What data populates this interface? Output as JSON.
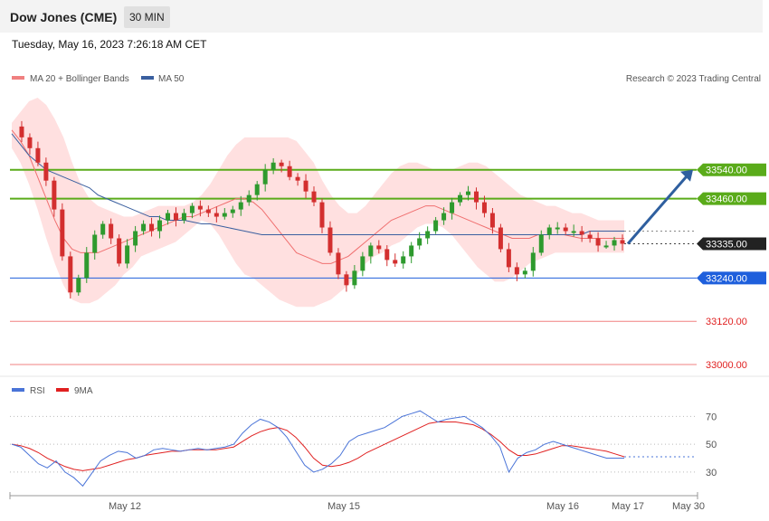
{
  "header": {
    "symbol": "Dow Jones (CME)",
    "timeframe": "30 MIN",
    "timestamp": "Tuesday, May 16, 2023 7:26:18 AM CET"
  },
  "legend": {
    "ma20": {
      "label": "MA 20 + Bollinger Bands",
      "color": "#f08080"
    },
    "ma50": {
      "label": "MA 50",
      "color": "#3a5f9f"
    },
    "rsi": {
      "label": "RSI",
      "color": "#4a74d8"
    },
    "ma9": {
      "label": "9MA",
      "color": "#e02020"
    },
    "credit": "Research © 2023 Trading Central"
  },
  "colors": {
    "up_candle": "#2e9a2e",
    "down_candle": "#d32f2f",
    "bollinger_fill": "#ffd6d6",
    "resistance": "#5aab1a",
    "support": "#1e5fdc",
    "support_far": "#f08080",
    "current": "#222222",
    "arrow": "#2f5f9f"
  },
  "chart_data": [
    {
      "type": "candlestick",
      "title": "Dow Jones (CME) 30 MIN",
      "ylim": [
        32970,
        33760
      ],
      "x_ticks": [
        "May 12",
        "May 15",
        "May 16",
        "May 17",
        "May 30"
      ],
      "levels": [
        {
          "value": 33540.0,
          "label": "33540.00",
          "kind": "resistance"
        },
        {
          "value": 33460.0,
          "label": "33460.00",
          "kind": "resistance"
        },
        {
          "value": 33335.0,
          "label": "33335.00",
          "kind": "current"
        },
        {
          "value": 33240.0,
          "label": "33240.00",
          "kind": "support"
        },
        {
          "value": 33120.0,
          "label": "33120.00",
          "kind": "support_far"
        },
        {
          "value": 33000.0,
          "label": "33000.00",
          "kind": "support_far"
        }
      ],
      "close_path": [
        33660,
        33630,
        33600,
        33560,
        33510,
        33430,
        33300,
        33200,
        33240,
        33310,
        33360,
        33390,
        33350,
        33280,
        33330,
        33370,
        33390,
        33370,
        33400,
        33420,
        33400,
        33420,
        33440,
        33430,
        33420,
        33410,
        33420,
        33430,
        33450,
        33470,
        33500,
        33540,
        33560,
        33550,
        33520,
        33510,
        33480,
        33450,
        33380,
        33310,
        33250,
        33220,
        33260,
        33300,
        33330,
        33320,
        33290,
        33280,
        33300,
        33330,
        33350,
        33370,
        33400,
        33420,
        33450,
        33470,
        33480,
        33450,
        33420,
        33380,
        33320,
        33270,
        33250,
        33260,
        33310,
        33360,
        33380,
        33380,
        33370,
        33370,
        33360,
        33350,
        33330,
        33330,
        33345,
        33335
      ],
      "bollinger_upper": [
        33670,
        33700,
        33730,
        33740,
        33720,
        33680,
        33630,
        33560,
        33500,
        33460,
        33440,
        33430,
        33420,
        33410,
        33410,
        33420,
        33430,
        33440,
        33440,
        33440,
        33440,
        33450,
        33470,
        33500,
        33540,
        33580,
        33610,
        33630,
        33630,
        33630,
        33630,
        33630,
        33630,
        33620,
        33590,
        33560,
        33510,
        33470,
        33440,
        33420,
        33420,
        33440,
        33470,
        33500,
        33530,
        33550,
        33560,
        33560,
        33550,
        33540,
        33540,
        33540,
        33550,
        33560,
        33560,
        33550,
        33530,
        33510,
        33490,
        33470,
        33460,
        33450,
        33440,
        33440,
        33430,
        33420,
        33420,
        33410,
        33400,
        33400,
        33400,
        33400
      ],
      "bollinger_lower": [
        33600,
        33560,
        33500,
        33430,
        33350,
        33280,
        33220,
        33180,
        33170,
        33170,
        33180,
        33200,
        33220,
        33250,
        33270,
        33300,
        33310,
        33320,
        33330,
        33340,
        33360,
        33380,
        33400,
        33390,
        33360,
        33320,
        33280,
        33250,
        33240,
        33220,
        33200,
        33180,
        33170,
        33160,
        33160,
        33160,
        33170,
        33180,
        33200,
        33220,
        33250,
        33280,
        33300,
        33310,
        33330,
        33340,
        33360,
        33380,
        33390,
        33390,
        33380,
        33360,
        33330,
        33300,
        33270,
        33250,
        33230,
        33230,
        33240,
        33260,
        33280,
        33290,
        33300,
        33310,
        33310,
        33310,
        33310,
        33310,
        33310,
        33310,
        33310,
        33310
      ],
      "ma20": [
        33650,
        33620,
        33580,
        33520,
        33460,
        33400,
        33350,
        33320,
        33310,
        33310,
        33310,
        33320,
        33330,
        33340,
        33350,
        33360,
        33370,
        33380,
        33390,
        33400,
        33410,
        33410,
        33420,
        33430,
        33440,
        33450,
        33460,
        33460,
        33450,
        33430,
        33400,
        33370,
        33340,
        33310,
        33300,
        33290,
        33280,
        33280,
        33290,
        33300,
        33320,
        33340,
        33360,
        33380,
        33400,
        33410,
        33420,
        33430,
        33440,
        33440,
        33430,
        33420,
        33410,
        33400,
        33390,
        33380,
        33370,
        33360,
        33350,
        33350,
        33350,
        33360,
        33360,
        33360,
        33360,
        33355,
        33350,
        33350,
        33350,
        33350,
        33350,
        33350
      ],
      "ma50": [
        33640,
        33610,
        33580,
        33560,
        33540,
        33530,
        33520,
        33510,
        33500,
        33490,
        33470,
        33460,
        33450,
        33440,
        33430,
        33420,
        33410,
        33410,
        33400,
        33400,
        33400,
        33395,
        33390,
        33390,
        33385,
        33380,
        33375,
        33370,
        33365,
        33360,
        33360,
        33360,
        33360,
        33360,
        33360,
        33360,
        33360,
        33360,
        33360,
        33360,
        33360,
        33360,
        33360,
        33360,
        33360,
        33360,
        33360,
        33360,
        33360,
        33360,
        33360,
        33360,
        33360,
        33360,
        33360,
        33360,
        33360,
        33360,
        33360,
        33360,
        33360,
        33360,
        33360,
        33360,
        33360,
        33360,
        33360,
        33370,
        33370,
        33370,
        33370,
        33370
      ],
      "forecast_arrow": {
        "from": 33335,
        "to": 33540
      }
    },
    {
      "type": "line",
      "series_names": [
        "RSI",
        "9MA"
      ],
      "yticks": [
        70,
        50,
        30
      ],
      "ylim": [
        15,
        80
      ],
      "rsi": [
        50,
        48,
        42,
        36,
        33,
        38,
        30,
        26,
        20,
        29,
        38,
        42,
        45,
        44,
        40,
        42,
        46,
        47,
        46,
        45,
        46,
        47,
        46,
        47,
        48,
        50,
        58,
        64,
        68,
        66,
        62,
        55,
        45,
        35,
        30,
        32,
        36,
        42,
        52,
        56,
        58,
        60,
        62,
        66,
        70,
        72,
        74,
        70,
        66,
        68,
        69,
        70,
        66,
        62,
        56,
        48,
        30,
        40,
        44,
        46,
        50,
        52,
        50,
        48,
        46,
        44,
        42,
        40,
        40,
        40
      ],
      "ma9": [
        50,
        49,
        47,
        44,
        40,
        37,
        34,
        32,
        31,
        32,
        33,
        35,
        37,
        39,
        40,
        42,
        43,
        44,
        45,
        45,
        46,
        46,
        46,
        46,
        47,
        48,
        52,
        56,
        59,
        61,
        62,
        60,
        55,
        48,
        40,
        35,
        34,
        35,
        37,
        40,
        44,
        47,
        50,
        53,
        56,
        59,
        62,
        65,
        66,
        66,
        66,
        65,
        64,
        61,
        57,
        52,
        46,
        42,
        42,
        43,
        45,
        47,
        49,
        49,
        48,
        47,
        46,
        45,
        43,
        41
      ]
    }
  ]
}
